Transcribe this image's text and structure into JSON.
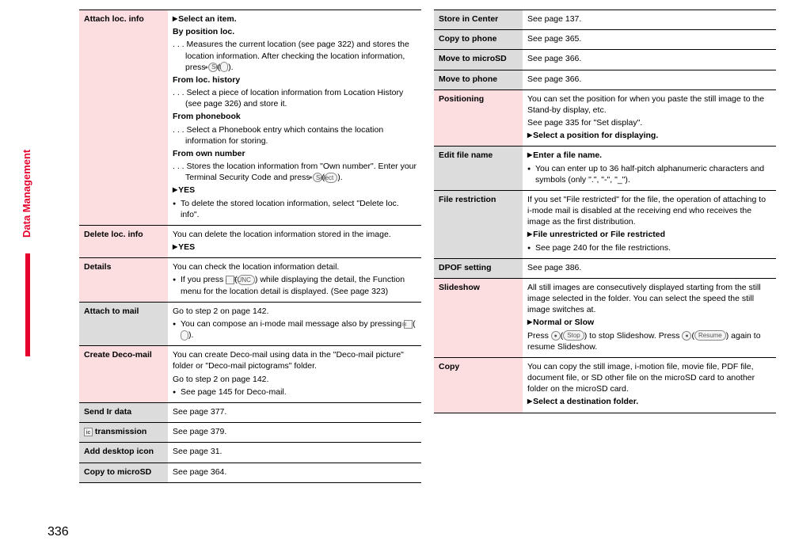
{
  "sideTab": "Data Management",
  "pageNumber": "336",
  "leftRows": [
    {
      "shade": "pink",
      "label": "Attach loc. info",
      "lines": [
        {
          "cls": "tri bold",
          "html": "Select an item."
        },
        {
          "cls": "bold",
          "html": "By position loc."
        },
        {
          "cls": "sub",
          "html": ". . . Measures the current location (see page 322) and stores the location information. After checking the location information, press <span class='icon-circ'>●</span>(<span class='icon-btn'>Set</span>)."
        },
        {
          "cls": "bold",
          "html": "From loc. history"
        },
        {
          "cls": "sub",
          "html": ". . . Select a piece of location information from Location History (see page 326) and store it."
        },
        {
          "cls": "bold",
          "html": "From phonebook"
        },
        {
          "cls": "sub",
          "html": ". . . Select a Phonebook entry which contains the location information for storing."
        },
        {
          "cls": "bold",
          "html": "From own number"
        },
        {
          "cls": "sub",
          "html": ". . . Stores the location information from \"Own number\". Enter your Terminal Security Code and press <span class='icon-circ'>●</span>(<span class='icon-btn'>Select</span>)."
        },
        {
          "cls": "tri bold",
          "html": "YES"
        },
        {
          "cls": "bullet",
          "html": "To delete the stored location information, select \"Delete loc. info\"."
        }
      ]
    },
    {
      "shade": "pink",
      "label": "Delete loc. info",
      "lines": [
        {
          "cls": "",
          "html": "You can delete the location information stored in the image."
        },
        {
          "cls": "tri bold",
          "html": "YES"
        }
      ]
    },
    {
      "shade": "pink",
      "label": "Details",
      "lines": [
        {
          "cls": "",
          "html": "You can check the location information detail."
        },
        {
          "cls": "bullet",
          "html": "If you press <span class='icon-sq'>i</span>(<span class='icon-btn'>FUNC</span>) while displaying the detail, the Function menu for the location detail is displayed. (See page 323)"
        }
      ]
    },
    {
      "shade": "gray",
      "label": "Attach to mail",
      "lines": [
        {
          "cls": "",
          "html": "Go to step 2 on page 142."
        },
        {
          "cls": "bullet",
          "html": "You can compose an i-mode mail message also by pressing <span class='icon-sq'>✉</span>(<span class='icon-btn'>&nbsp;&nbsp;&nbsp;&nbsp;</span>)."
        }
      ]
    },
    {
      "shade": "pink",
      "label": "Create Deco-mail",
      "lines": [
        {
          "cls": "",
          "html": "You can create Deco-mail using data in the \"Deco-mail picture\" folder or \"Deco-mail pictograms\" folder."
        },
        {
          "cls": "",
          "html": "Go to step 2 on page 142."
        },
        {
          "cls": "bullet",
          "html": "See page 145 for Deco-mail."
        }
      ]
    },
    {
      "shade": "gray",
      "label": "Send Ir data",
      "lines": [
        {
          "cls": "",
          "html": "See page 377."
        }
      ]
    },
    {
      "shade": "gray",
      "label": "<span class='icon-sq'>ic</span> transmission",
      "lines": [
        {
          "cls": "",
          "html": "See page 379."
        }
      ]
    },
    {
      "shade": "gray",
      "label": "Add desktop icon",
      "lines": [
        {
          "cls": "",
          "html": "See page 31."
        }
      ]
    },
    {
      "shade": "gray",
      "label": "Copy to microSD",
      "lines": [
        {
          "cls": "",
          "html": "See page 364."
        }
      ]
    }
  ],
  "rightRows": [
    {
      "shade": "gray",
      "label": "Store in Center",
      "lines": [
        {
          "cls": "",
          "html": "See page 137."
        }
      ]
    },
    {
      "shade": "gray",
      "label": "Copy to phone",
      "lines": [
        {
          "cls": "",
          "html": "See page 365."
        }
      ]
    },
    {
      "shade": "gray",
      "label": "Move to microSD",
      "lines": [
        {
          "cls": "",
          "html": "See page 366."
        }
      ]
    },
    {
      "shade": "gray",
      "label": "Move to phone",
      "lines": [
        {
          "cls": "",
          "html": "See page 366."
        }
      ]
    },
    {
      "shade": "pink",
      "label": "Positioning",
      "lines": [
        {
          "cls": "",
          "html": "You can set the position for when you paste the still image to the Stand-by display, etc."
        },
        {
          "cls": "",
          "html": "See page 335 for \"Set display\"."
        },
        {
          "cls": "tri bold",
          "html": "Select a position for displaying."
        }
      ]
    },
    {
      "shade": "gray",
      "label": "Edit file name",
      "lines": [
        {
          "cls": "tri bold",
          "html": "Enter a file name."
        },
        {
          "cls": "bullet",
          "html": "You can enter up to 36 half-pitch alphanumeric characters and symbols (only \".\", \"-\", \"_\")."
        }
      ]
    },
    {
      "shade": "gray",
      "label": "File restriction",
      "lines": [
        {
          "cls": "",
          "html": "If you set \"File restricted\" for the file, the operation of attaching to i-mode mail is disabled at the receiving end who receives the image as the first distribution."
        },
        {
          "cls": "tri bold",
          "html": "File unrestricted or File restricted"
        },
        {
          "cls": "bullet",
          "html": "See page 240 for the file restrictions."
        }
      ]
    },
    {
      "shade": "gray",
      "label": "DPOF setting",
      "lines": [
        {
          "cls": "",
          "html": "See page 386."
        }
      ]
    },
    {
      "shade": "pink",
      "label": "Slideshow",
      "lines": [
        {
          "cls": "",
          "html": "All still images are consecutively displayed starting from the still image selected in the folder. You can select the speed the still image switches at."
        },
        {
          "cls": "tri bold",
          "html": "Normal or Slow"
        },
        {
          "cls": "",
          "html": "Press <span class='icon-circ'>●</span>(<span class='icon-btn'>Stop</span>) to stop Slideshow. Press <span class='icon-circ'>●</span>(<span class='icon-btn'>Resume</span>) again to resume Slideshow."
        }
      ]
    },
    {
      "shade": "pink",
      "label": "Copy",
      "lines": [
        {
          "cls": "",
          "html": "You can copy the still image, i-motion file, movie file, PDF file, document file, or SD other file on the microSD card to another folder on the microSD card."
        },
        {
          "cls": "tri bold",
          "html": "Select a destination folder."
        }
      ]
    }
  ]
}
